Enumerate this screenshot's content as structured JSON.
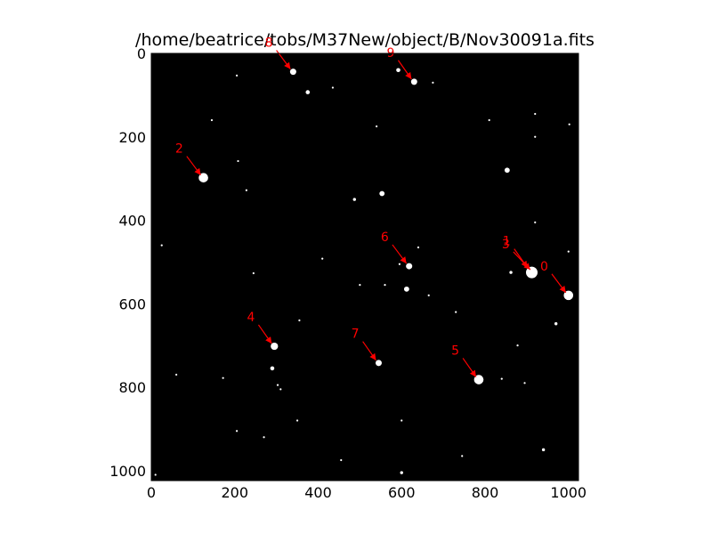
{
  "title": "/home/beatrice/tobs/M37New/object/B/Nov30091a.fits",
  "colors": {
    "background": "#000000",
    "stars": "#ffffff",
    "markers": "#ff0000"
  },
  "image_extent": {
    "x": [
      0,
      1024
    ],
    "y": [
      1024,
      0
    ]
  },
  "x_ticks": [
    "0",
    "200",
    "400",
    "600",
    "800",
    "1000"
  ],
  "y_ticks": [
    "0",
    "200",
    "400",
    "600",
    "800",
    "1000"
  ],
  "x_tick_values": [
    0,
    200,
    400,
    600,
    800,
    1000
  ],
  "y_tick_values": [
    0,
    200,
    400,
    600,
    800,
    1000
  ],
  "stars": [
    {
      "x": 125,
      "y": 298,
      "r": 8
    },
    {
      "x": 340,
      "y": 44,
      "r": 5
    },
    {
      "x": 630,
      "y": 68,
      "r": 5
    },
    {
      "x": 592,
      "y": 40,
      "r": 3
    },
    {
      "x": 375,
      "y": 93,
      "r": 3
    },
    {
      "x": 853,
      "y": 280,
      "r": 4
    },
    {
      "x": 553,
      "y": 336,
      "r": 4
    },
    {
      "x": 487,
      "y": 350,
      "r": 2
    },
    {
      "x": 618,
      "y": 510,
      "r": 5
    },
    {
      "x": 612,
      "y": 565,
      "r": 4
    },
    {
      "x": 912,
      "y": 525,
      "r": 10
    },
    {
      "x": 1000,
      "y": 580,
      "r": 8
    },
    {
      "x": 295,
      "y": 702,
      "r": 6
    },
    {
      "x": 290,
      "y": 755,
      "r": 3
    },
    {
      "x": 545,
      "y": 742,
      "r": 5
    },
    {
      "x": 785,
      "y": 782,
      "r": 8
    },
    {
      "x": 970,
      "y": 648,
      "r": 2
    },
    {
      "x": 862,
      "y": 525,
      "r": 2
    },
    {
      "x": 205,
      "y": 53,
      "r": 1
    },
    {
      "x": 145,
      "y": 160,
      "r": 1
    },
    {
      "x": 208,
      "y": 258,
      "r": 1
    },
    {
      "x": 228,
      "y": 328,
      "r": 1
    },
    {
      "x": 25,
      "y": 460,
      "r": 1
    },
    {
      "x": 245,
      "y": 527,
      "r": 1
    },
    {
      "x": 410,
      "y": 492,
      "r": 1
    },
    {
      "x": 500,
      "y": 555,
      "r": 1
    },
    {
      "x": 665,
      "y": 580,
      "r": 1
    },
    {
      "x": 730,
      "y": 620,
      "r": 1
    },
    {
      "x": 60,
      "y": 770,
      "r": 1
    },
    {
      "x": 172,
      "y": 778,
      "r": 1
    },
    {
      "x": 355,
      "y": 640,
      "r": 1
    },
    {
      "x": 940,
      "y": 950,
      "r": 2
    },
    {
      "x": 350,
      "y": 880,
      "r": 1
    },
    {
      "x": 205,
      "y": 905,
      "r": 1
    },
    {
      "x": 270,
      "y": 920,
      "r": 1
    },
    {
      "x": 600,
      "y": 880,
      "r": 1
    },
    {
      "x": 745,
      "y": 965,
      "r": 1
    },
    {
      "x": 840,
      "y": 780,
      "r": 1
    },
    {
      "x": 878,
      "y": 700,
      "r": 1
    },
    {
      "x": 895,
      "y": 790,
      "r": 1
    },
    {
      "x": 10,
      "y": 1010,
      "r": 1
    },
    {
      "x": 600,
      "y": 1005,
      "r": 2
    },
    {
      "x": 455,
      "y": 975,
      "r": 1
    },
    {
      "x": 1002,
      "y": 170,
      "r": 1
    },
    {
      "x": 920,
      "y": 200,
      "r": 1
    },
    {
      "x": 920,
      "y": 145,
      "r": 1
    },
    {
      "x": 810,
      "y": 160,
      "r": 1
    },
    {
      "x": 675,
      "y": 70,
      "r": 1
    },
    {
      "x": 540,
      "y": 175,
      "r": 1
    },
    {
      "x": 435,
      "y": 82,
      "r": 1
    },
    {
      "x": 595,
      "y": 505,
      "r": 1
    },
    {
      "x": 920,
      "y": 405,
      "r": 1
    },
    {
      "x": 1000,
      "y": 475,
      "r": 1
    },
    {
      "x": 640,
      "y": 465,
      "r": 1
    },
    {
      "x": 303,
      "y": 795,
      "r": 1
    },
    {
      "x": 310,
      "y": 805,
      "r": 1
    },
    {
      "x": 560,
      "y": 555,
      "r": 1
    }
  ],
  "markers": [
    {
      "label": "0",
      "x": 1000,
      "y": 580,
      "lx": 945,
      "ly": 520
    },
    {
      "label": "1",
      "x": 908,
      "y": 520,
      "lx": 855,
      "ly": 460
    },
    {
      "label": "3",
      "x": 915,
      "y": 525,
      "lx": 853,
      "ly": 467
    },
    {
      "label": "2",
      "x": 125,
      "y": 298,
      "lx": 70,
      "ly": 238
    },
    {
      "label": "4",
      "x": 295,
      "y": 702,
      "lx": 242,
      "ly": 642
    },
    {
      "label": "5",
      "x": 785,
      "y": 782,
      "lx": 732,
      "ly": 722
    },
    {
      "label": "6",
      "x": 618,
      "y": 510,
      "lx": 563,
      "ly": 450
    },
    {
      "label": "7",
      "x": 545,
      "y": 742,
      "lx": 492,
      "ly": 682
    },
    {
      "label": "8",
      "x": 340,
      "y": 44,
      "lx": 285,
      "ly": -16
    },
    {
      "label": "9",
      "x": 630,
      "y": 68,
      "lx": 577,
      "ly": 8
    }
  ]
}
